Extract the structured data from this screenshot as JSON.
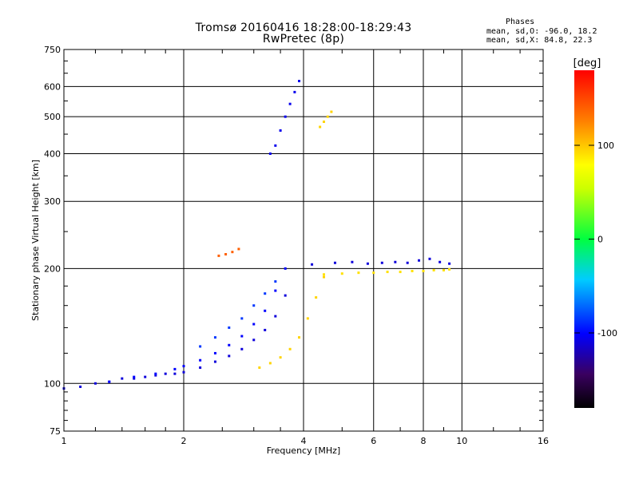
{
  "title": {
    "line1": "Tromsø 20160416 18:28:00-18:29:43",
    "line2": "RwPretec (8p)"
  },
  "phases": {
    "heading": "Phases",
    "o_line": "mean, sd,O: -96.0, 18.2",
    "x_line": "mean, sd,X:  84.8, 22.3"
  },
  "colorbar": {
    "label": "[deg]",
    "ticks": [
      "100",
      "0",
      "-100"
    ],
    "range": [
      -180,
      180
    ]
  },
  "chart_data": {
    "type": "scatter",
    "xlabel": "Frequency [MHz]",
    "ylabel": "Stationary phase Virtual Height [km]",
    "x_scale": "log",
    "y_scale": "log",
    "xlim": [
      1,
      16
    ],
    "ylim": [
      75,
      750
    ],
    "x_ticks": [
      1,
      2,
      4,
      6,
      8,
      10,
      16
    ],
    "x_tick_labels": [
      "1",
      "2",
      "4",
      "6",
      "8",
      "10",
      "16"
    ],
    "y_ticks": [
      75,
      100,
      200,
      300,
      400,
      500,
      600,
      750
    ],
    "y_tick_labels": [
      "75",
      "100",
      "200",
      "300",
      "400",
      "500",
      "600",
      "750"
    ],
    "grid": true,
    "color_encodes": "phase (deg)",
    "groups": [
      {
        "x": [
          1.0,
          1.1,
          1.2,
          1.3,
          1.4,
          1.5,
          1.6,
          1.7,
          1.8,
          1.9,
          2.0,
          2.2,
          2.4,
          2.6,
          2.8,
          3.0,
          3.2,
          3.4,
          3.6
        ],
        "y": [
          97,
          98,
          100,
          101,
          103,
          103,
          104,
          105,
          106,
          106,
          107,
          110,
          114,
          118,
          123,
          130,
          138,
          150,
          170
        ],
        "phase": -110
      },
      {
        "x": [
          1.3,
          1.5,
          1.7,
          1.9,
          2.0,
          2.2,
          2.4,
          2.6,
          2.8,
          3.0,
          3.2,
          3.4,
          3.6
        ],
        "y": [
          101,
          104,
          106,
          109,
          111,
          115,
          120,
          126,
          133,
          143,
          155,
          175,
          200
        ],
        "phase": -100
      },
      {
        "x": [
          2.2,
          2.4,
          2.6,
          2.8,
          3.0,
          3.2,
          3.4
        ],
        "y": [
          125,
          132,
          140,
          148,
          160,
          172,
          185
        ],
        "phase": -85
      },
      {
        "x": [
          3.1,
          3.3,
          3.5,
          3.7,
          3.9,
          4.1,
          4.3,
          4.5
        ],
        "y": [
          110,
          113,
          117,
          123,
          132,
          148,
          168,
          190
        ],
        "phase": 95
      },
      {
        "x": [
          3.3,
          3.4,
          3.5,
          3.6,
          3.7,
          3.8,
          3.9
        ],
        "y": [
          400,
          420,
          460,
          500,
          540,
          580,
          620
        ],
        "phase": -105
      },
      {
        "x": [
          4.5,
          5.0,
          5.5,
          6.0,
          6.5,
          7.0,
          7.5,
          8.0,
          8.5,
          9.0,
          9.3
        ],
        "y": [
          193,
          194,
          195,
          195,
          196,
          196,
          197,
          197,
          198,
          198,
          199
        ],
        "phase": 90
      },
      {
        "x": [
          4.2,
          4.8,
          5.3,
          5.8,
          6.3,
          6.8,
          7.3,
          7.8,
          8.3,
          8.8,
          9.3
        ],
        "y": [
          205,
          207,
          208,
          206,
          207,
          208,
          207,
          210,
          212,
          208,
          206
        ],
        "phase": -110
      },
      {
        "x": [
          2.45,
          2.55,
          2.65,
          2.75
        ],
        "y": [
          216,
          218,
          221,
          225
        ],
        "phase": 140
      },
      {
        "x": [
          4.4,
          4.5,
          4.6,
          4.7
        ],
        "y": [
          470,
          485,
          500,
          515
        ],
        "phase": 95
      }
    ]
  }
}
